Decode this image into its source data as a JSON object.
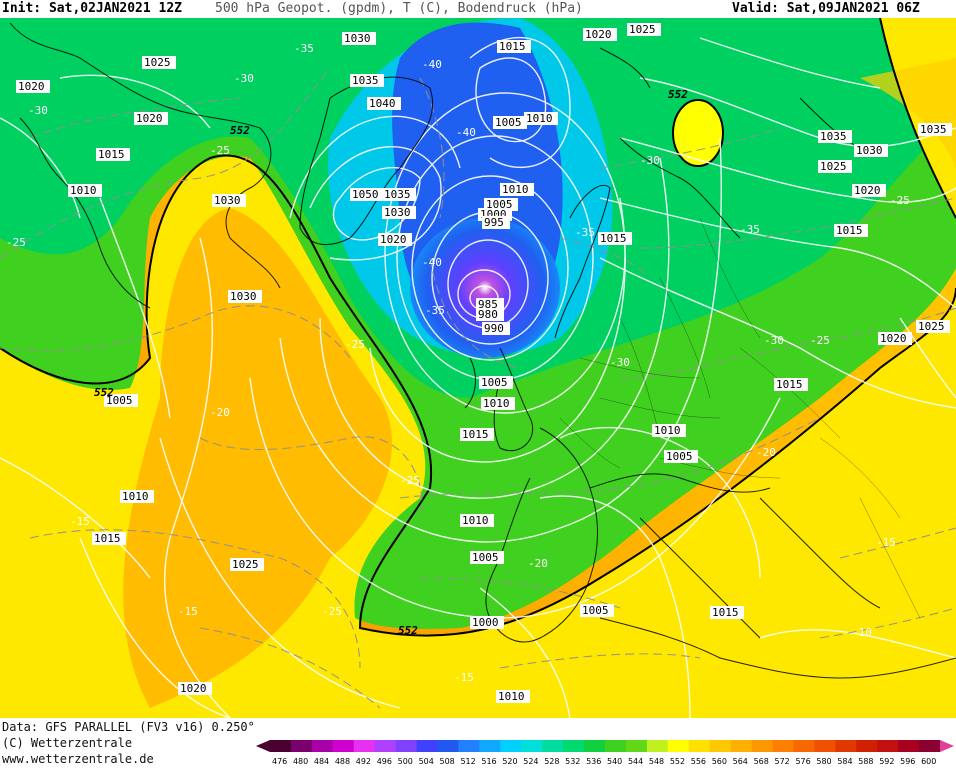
{
  "header": {
    "init": "Init: Sat,02JAN2021 12Z",
    "title": "500 hPa Geopot. (gpdm), T (C), Bodendruck (hPa)",
    "valid": "Valid: Sat,09JAN2021 06Z"
  },
  "footer": {
    "data_line": "Data: GFS PARALLEL (FV3 v16) 0.250°",
    "copyright": "(C) Wetterzentrale",
    "website": "www.wetterzentrale.de"
  },
  "colorbar": {
    "ticks": [
      "476",
      "480",
      "484",
      "488",
      "492",
      "496",
      "500",
      "504",
      "508",
      "512",
      "516",
      "520",
      "524",
      "528",
      "532",
      "536",
      "540",
      "544",
      "548",
      "552",
      "556",
      "560",
      "564",
      "568",
      "572",
      "576",
      "580",
      "584",
      "588",
      "592",
      "596",
      "600"
    ],
    "colors": [
      "#4b0030",
      "#7a006e",
      "#a800a8",
      "#d000d0",
      "#e830f0",
      "#b040ff",
      "#8040ff",
      "#4040ff",
      "#2058f0",
      "#2080ff",
      "#10a8ff",
      "#00d0ff",
      "#00e0d8",
      "#00dca0",
      "#00d870",
      "#10d040",
      "#40d020",
      "#60d818",
      "#c0f020",
      "#ffff00",
      "#ffe000",
      "#ffc800",
      "#ffb000",
      "#ff9800",
      "#ff8000",
      "#f86800",
      "#f05000",
      "#e03800",
      "#d02000",
      "#c01010",
      "#a80020",
      "#8a0030"
    ]
  },
  "map_labels": {
    "isobars": [
      "1030",
      "1020",
      "1025",
      "1015",
      "1035",
      "1040",
      "1050",
      "1035",
      "1030",
      "1020",
      "1015",
      "1010",
      "1005",
      "1000",
      "995",
      "990",
      "985",
      "980",
      "990",
      "1005",
      "1010",
      "1015",
      "1010",
      "1005",
      "1000",
      "1005",
      "1010",
      "1015",
      "1025",
      "1020",
      "1015",
      "1030",
      "1035",
      "1025",
      "1020",
      "1010",
      "1005",
      "1010",
      "1015",
      "1020",
      "1030",
      "1025",
      "1020",
      "1015",
      "1010",
      "1005",
      "1000",
      "1015",
      "1010",
      "1005",
      "1015",
      "1025"
    ],
    "temps": [
      "-35",
      "-30",
      "-30",
      "-25",
      "-40",
      "-40",
      "-40",
      "-35",
      "-35",
      "-30",
      "-30",
      "-35",
      "-25",
      "-30",
      "-25",
      "-25",
      "-20",
      "-20",
      "-25",
      "-15",
      "-15",
      "-15",
      "-20",
      "-15",
      "-10",
      "-25",
      "-15",
      "-30",
      "-25",
      "-40"
    ],
    "geopot": [
      "552",
      "552",
      "552",
      "552",
      "552"
    ]
  }
}
